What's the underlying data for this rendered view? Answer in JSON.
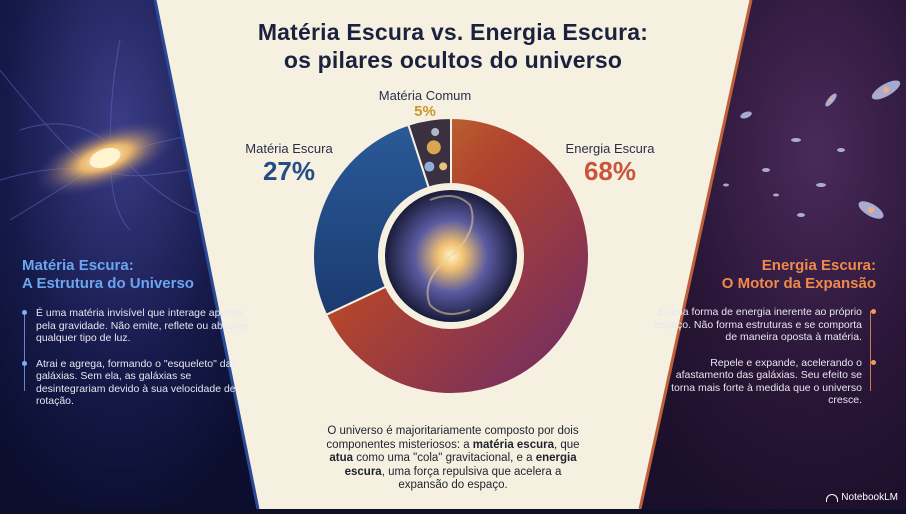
{
  "title_line1": "Matéria Escura vs. Energia Escura:",
  "title_line2": "os pilares ocultos do universo",
  "chart_data": {
    "type": "pie",
    "categories": [
      "Energia Escura",
      "Matéria Escura",
      "Matéria Comum"
    ],
    "values": [
      68,
      27,
      5
    ],
    "percent_labels": [
      "68%",
      "27%",
      "5%"
    ],
    "colors": [
      "#b0432e",
      "#244d86",
      "#c9b88a"
    ]
  },
  "segments": {
    "energy": {
      "name": "Energia Escura",
      "pct": "68%",
      "color": "#c8563a"
    },
    "dark_matter": {
      "name": "Matéria Escura",
      "pct": "27%",
      "color": "#244d86"
    },
    "common": {
      "name": "Matéria Comum",
      "pct": "5%",
      "color": "#c9962f"
    }
  },
  "left": {
    "heading_line1": "Matéria Escura:",
    "heading_line2": "A Estrutura do Universo",
    "bullets": [
      "É uma matéria invisível que interage apenas pela gravidade. Não emite, reflete ou absorve qualquer tipo de luz.",
      "Atrai e agrega, formando o \"esqueleto\" das galáxias. Sem ela, as galáxias se desintegrariam devido à sua velocidade de rotação."
    ]
  },
  "right": {
    "heading_line1": "Energia Escura:",
    "heading_line2": "O Motor da Expansão",
    "bullets": [
      "É uma forma de energia inerente ao próprio espaço. Não forma estruturas e se comporta de maneira oposta à matéria.",
      "Repele e expande, acelerando o afastamento das galáxias. Seu efeito se torna mais forte à medida que o universo cresce."
    ]
  },
  "bottom": {
    "p1": "O universo é majoritariamente composto por dois componentes misteriosos: a ",
    "b1": "matéria escura",
    "p2": ", que ",
    "p2b": "atua",
    "p3": " como uma \"cola\" gravitacional, e a ",
    "b2": "energia escura",
    "p4": ", uma força repulsiva que acelera a expansão do espaço."
  },
  "badge": "NotebookLM"
}
